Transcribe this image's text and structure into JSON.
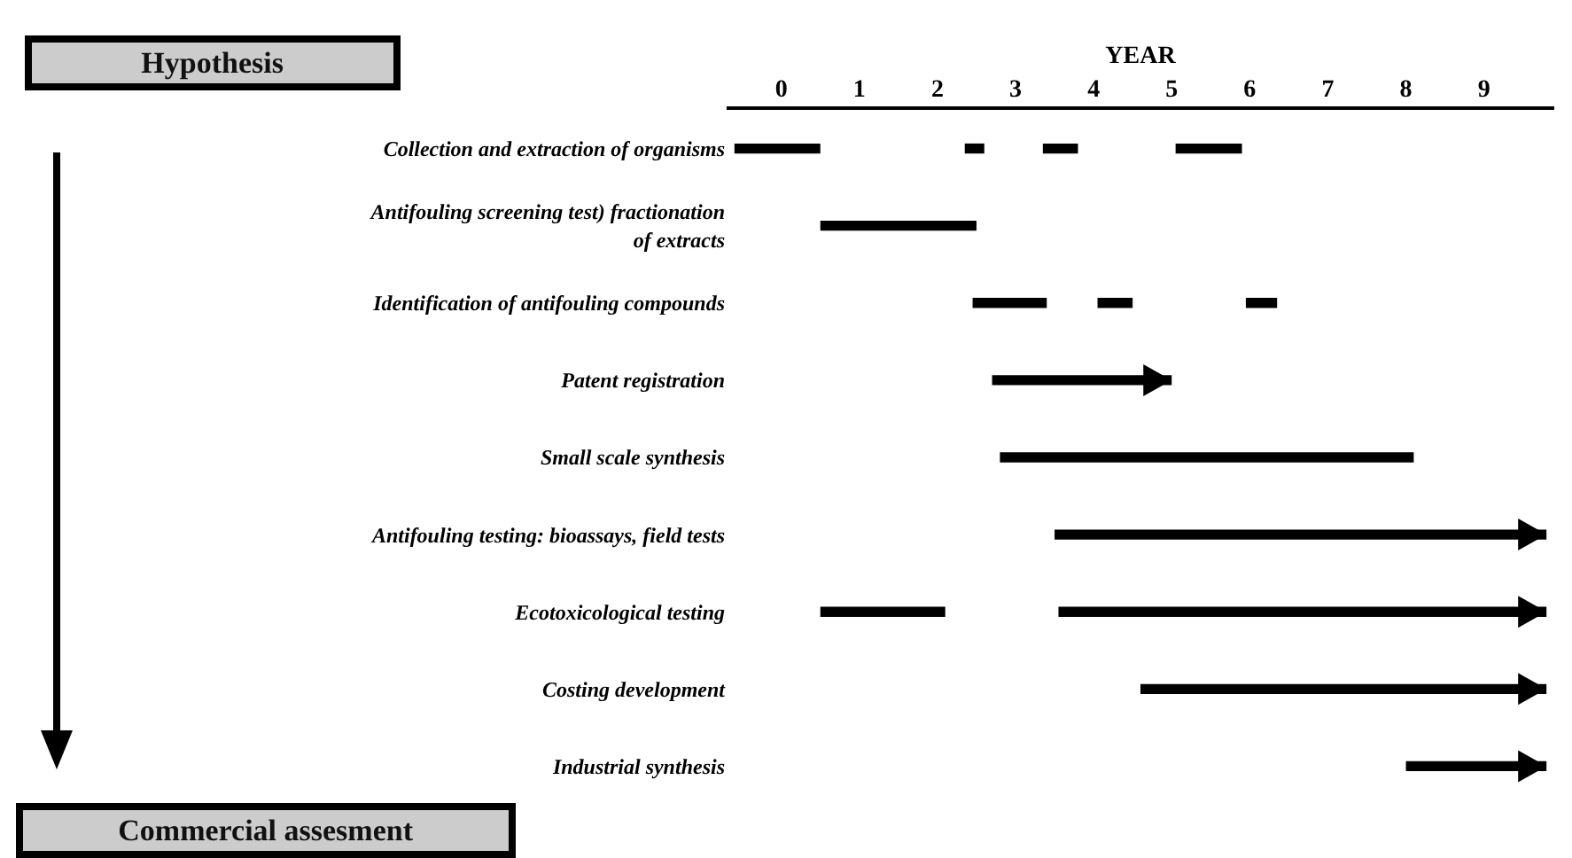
{
  "chart_data": {
    "type": "bar",
    "orientation": "horizontal",
    "xlabel": "YEAR",
    "categories": [
      "Collection and extraction of organisms",
      "Antifouling screening test) fractionation of extracts",
      "Identification of antifouling compounds",
      "Patent registration",
      "Small scale synthesis",
      "Antifouling testing: bioassays, field tests",
      "Ecotoxicological testing",
      "Costing development",
      "Industrial synthesis"
    ],
    "series": [
      {
        "color": "#000000",
        "base": [
          -0.6,
          0.5,
          2.45,
          null,
          2.8,
          null,
          0.5,
          null,
          null
        ],
        "values": [
          1.1,
          2.0,
          0.95,
          null,
          5.3,
          null,
          1.6,
          null,
          null
        ]
      },
      {
        "color": "#000000",
        "base": [
          2.35,
          null,
          4.05,
          null,
          null,
          null,
          null,
          null,
          null
        ],
        "values": [
          0.25,
          null,
          0.45,
          null,
          null,
          null,
          null,
          null,
          null
        ]
      },
      {
        "color": "#000000",
        "base": [
          3.35,
          null,
          5.95,
          null,
          null,
          null,
          null,
          null,
          null
        ],
        "values": [
          0.45,
          null,
          0.4,
          null,
          null,
          null,
          null,
          null,
          null
        ]
      },
      {
        "color": "#000000",
        "base": [
          5.05,
          null,
          null,
          null,
          null,
          null,
          null,
          null,
          null
        ],
        "values": [
          0.85,
          null,
          null,
          null,
          null,
          null,
          null,
          null,
          null
        ]
      },
      {
        "color": "#000000",
        "marker": "triangle",
        "base": [
          null,
          null,
          null,
          2.7,
          null,
          3.5,
          3.55,
          4.6,
          8.0
        ],
        "values": [
          null,
          null,
          null,
          2.3,
          null,
          6.3,
          6.25,
          5.2,
          1.8
        ]
      }
    ],
    "xlim": [
      -0.7,
      9.9
    ],
    "xticks": [
      0,
      1,
      2,
      3,
      4,
      5,
      6,
      7,
      8,
      9
    ],
    "legend": false,
    "annotations": [
      "Hypothesis",
      "Commercial assesment"
    ]
  }
}
